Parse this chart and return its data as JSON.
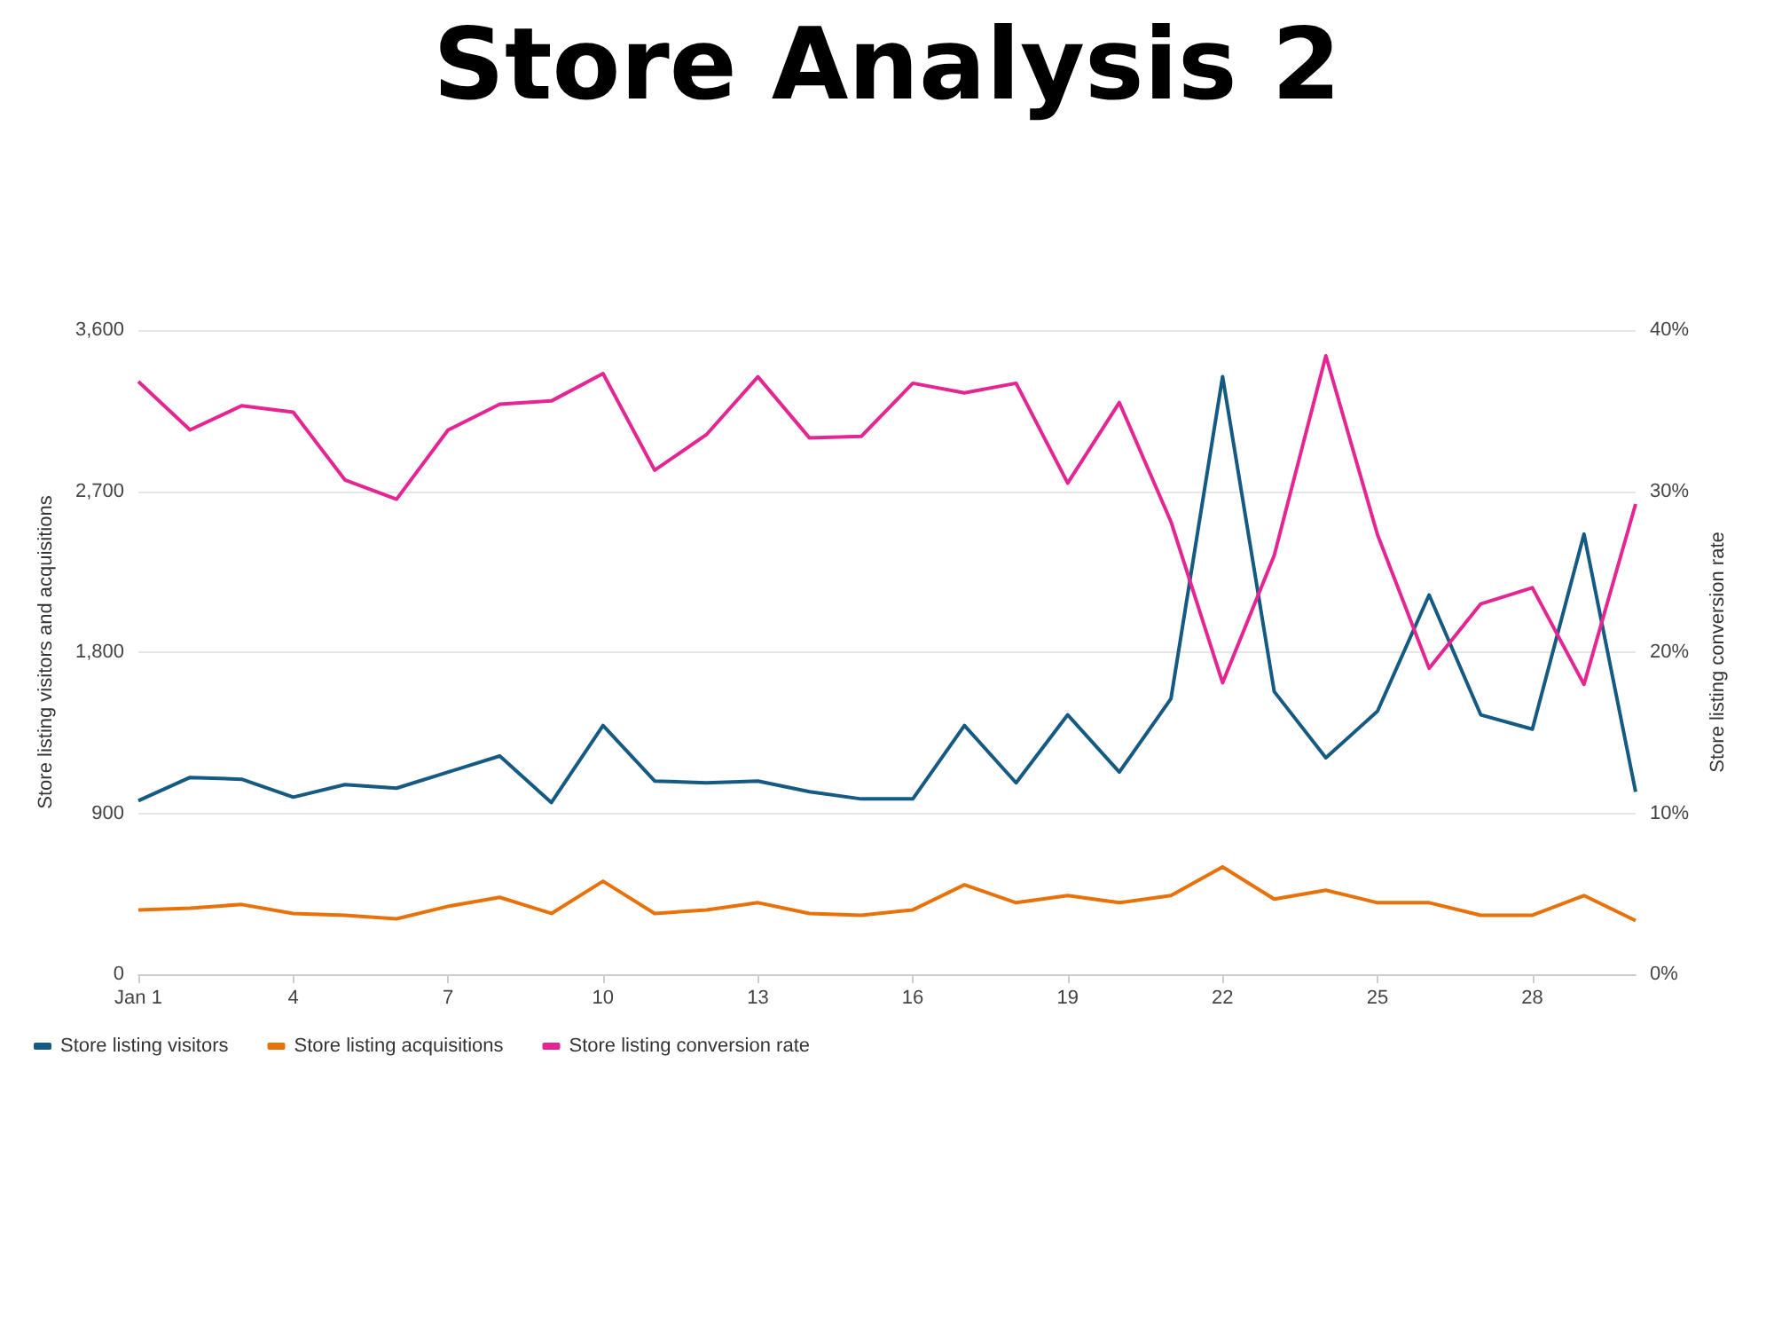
{
  "chart_data": {
    "type": "line",
    "title": "Store Analysis 2",
    "ylabel": "Store listing visitors and acquisitions",
    "y2label": "Store listing conversion rate",
    "categories": [
      "Jan 1",
      null,
      null,
      "4",
      null,
      null,
      "7",
      null,
      null,
      "10",
      null,
      null,
      "13",
      null,
      null,
      "16",
      null,
      null,
      "19",
      null,
      null,
      "22",
      null,
      null,
      "25",
      null,
      null,
      "28",
      null,
      null
    ],
    "series": [
      {
        "name": "Store listing visitors",
        "color": "#155a82",
        "values": [
          970,
          1100,
          1090,
          990,
          1060,
          1040,
          1130,
          1220,
          960,
          1390,
          1080,
          1070,
          1080,
          1020,
          980,
          980,
          1390,
          1070,
          1450,
          1130,
          1540,
          3340,
          1580,
          1210,
          1470,
          2120,
          1450,
          1370,
          2460,
          1020
        ]
      },
      {
        "name": "Store listing acquisitions",
        "color": "#e8710a",
        "values": [
          360,
          370,
          390,
          340,
          330,
          310,
          380,
          430,
          340,
          520,
          340,
          360,
          400,
          340,
          330,
          360,
          500,
          400,
          440,
          400,
          440,
          600,
          420,
          470,
          400,
          400,
          330,
          330,
          440,
          300
        ]
      },
      {
        "name": "Store listing conversion rate",
        "color": "#e52592",
        "axis": "y2",
        "values": [
          36.8,
          33.8,
          35.3,
          34.9,
          30.7,
          29.5,
          33.8,
          35.4,
          35.6,
          37.3,
          31.3,
          33.5,
          37.1,
          33.3,
          33.4,
          36.7,
          36.1,
          36.7,
          30.5,
          35.5,
          28.1,
          18.1,
          26.0,
          38.4,
          27.3,
          19.0,
          23.0,
          24.0,
          18.0,
          29.2
        ]
      }
    ],
    "ylim": [
      0,
      3600
    ],
    "yticks": [
      0,
      {
        "value": 900,
        "label": "900"
      },
      {
        "value": 1800,
        "label": "1,800"
      },
      {
        "value": 2700,
        "label": "2,700"
      },
      {
        "value": 3600,
        "label": "3,600"
      }
    ],
    "y2lim": [
      0,
      40
    ],
    "y2ticks": [
      {
        "value": 0,
        "label": "0%"
      },
      {
        "value": 10,
        "label": "10%"
      },
      {
        "value": 20,
        "label": "20%"
      },
      {
        "value": 30,
        "label": "30%"
      },
      {
        "value": 40,
        "label": "40%"
      }
    ],
    "grid": "y",
    "legend": "bottom left",
    "marker": "none",
    "line_style": "solid"
  }
}
